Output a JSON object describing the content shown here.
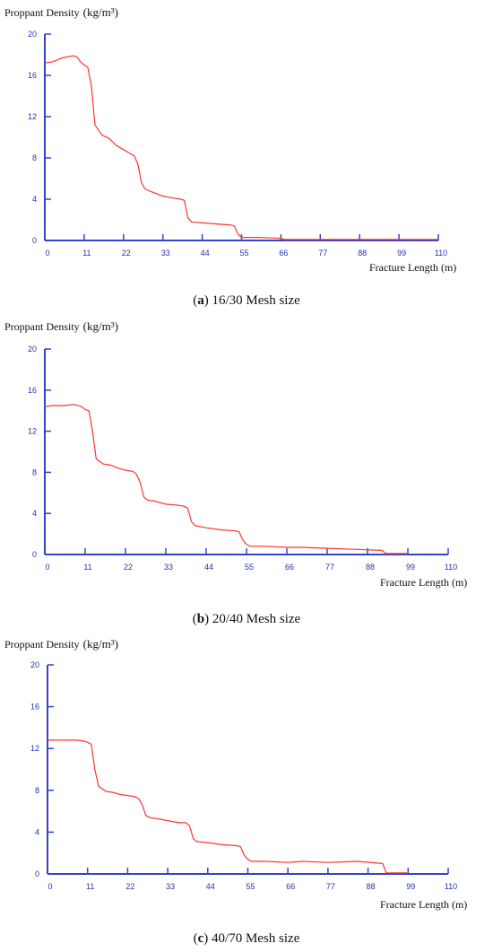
{
  "chart_data": [
    {
      "type": "line",
      "panel_label": "a",
      "caption": "16/30 Mesh size",
      "ylabel_text": "Proppant  Density",
      "ylabel_unit": "(kg/m³)",
      "xlabel_text": "Fracture Length",
      "xlabel_unit": "(m)",
      "xlim": [
        0,
        110
      ],
      "ylim": [
        0,
        20
      ],
      "xticks": [
        "0",
        "11",
        "22",
        "33",
        "44",
        "55",
        "66",
        "77",
        "88",
        "99",
        "110"
      ],
      "yticks": [
        "0",
        "4",
        "8",
        "12",
        "16",
        "20"
      ],
      "line_color": "#ff3333",
      "axis_color": "#3344cc",
      "x": [
        0,
        2,
        5,
        8,
        9,
        10,
        11,
        12,
        13,
        14,
        16,
        18,
        20,
        22,
        24,
        25,
        26,
        27,
        28,
        30,
        33,
        36,
        38,
        39,
        40,
        41,
        44,
        48,
        52,
        53,
        54,
        55,
        60,
        66,
        67,
        70,
        77,
        88,
        99,
        110
      ],
      "y": [
        17.2,
        17.3,
        17.7,
        17.9,
        17.8,
        17.3,
        17.0,
        16.8,
        15,
        11.2,
        10.2,
        9.9,
        9.2,
        8.8,
        8.4,
        8.2,
        7.4,
        5.6,
        5.0,
        4.7,
        4.3,
        4.1,
        4.0,
        3.9,
        2.2,
        1.8,
        1.7,
        1.6,
        1.5,
        1.4,
        0.6,
        0.3,
        0.3,
        0.2,
        0.1,
        0.1,
        0.1,
        0.1,
        0.1,
        0.1
      ]
    },
    {
      "type": "line",
      "panel_label": "b",
      "caption": "20/40 Mesh size",
      "ylabel_text": "Proppant  Density",
      "ylabel_unit": "(kg/m³)",
      "xlabel_text": "Fracture Length",
      "xlabel_unit": "(m)",
      "xlim": [
        0,
        110
      ],
      "ylim": [
        0,
        20
      ],
      "xticks": [
        "0",
        "11",
        "22",
        "33",
        "44",
        "55",
        "66",
        "77",
        "88",
        "99",
        "110"
      ],
      "yticks": [
        "0",
        "4",
        "8",
        "12",
        "16",
        "20"
      ],
      "line_color": "#ff3333",
      "axis_color": "#3344cc",
      "x": [
        0,
        2,
        5,
        8,
        10,
        11,
        12,
        13,
        14,
        16,
        18,
        20,
        22,
        24,
        25,
        26,
        27,
        28,
        30,
        33,
        36,
        38,
        39,
        40,
        41,
        44,
        48,
        52,
        53,
        54,
        55,
        56,
        60,
        66,
        70,
        77,
        85,
        92,
        93,
        99
      ],
      "y": [
        14.4,
        14.5,
        14.5,
        14.6,
        14.4,
        14.1,
        14.0,
        12,
        9.3,
        8.8,
        8.7,
        8.4,
        8.2,
        8.1,
        7.8,
        7.0,
        5.6,
        5.3,
        5.2,
        4.9,
        4.8,
        4.7,
        4.5,
        3.2,
        2.8,
        2.6,
        2.4,
        2.3,
        2.2,
        1.4,
        1.0,
        0.8,
        0.8,
        0.7,
        0.7,
        0.6,
        0.5,
        0.4,
        0.1,
        0.1
      ]
    },
    {
      "type": "line",
      "panel_label": "c",
      "caption": "40/70 Mesh size",
      "ylabel_text": "Proppant  Density",
      "ylabel_unit": "(kg/m³)",
      "xlabel_text": "Fracture Length",
      "xlabel_unit": "(m)",
      "xlim": [
        0,
        110
      ],
      "ylim": [
        0,
        20
      ],
      "xticks": [
        "0",
        "11",
        "22",
        "33",
        "44",
        "55",
        "66",
        "77",
        "88",
        "99",
        "110"
      ],
      "yticks": [
        "0",
        "4",
        "8",
        "12",
        "16",
        "20"
      ],
      "line_color": "#ff3333",
      "axis_color": "#3344cc",
      "x": [
        0,
        2,
        5,
        8,
        10,
        11,
        12,
        13,
        14,
        16,
        18,
        20,
        22,
        24,
        25,
        26,
        27,
        28,
        30,
        33,
        36,
        38,
        39,
        40,
        41,
        44,
        48,
        52,
        53,
        54,
        55,
        56,
        60,
        66,
        70,
        77,
        85,
        92,
        93,
        99
      ],
      "y": [
        12.8,
        12.8,
        12.8,
        12.8,
        12.7,
        12.6,
        12.4,
        10,
        8.4,
        7.9,
        7.8,
        7.6,
        7.5,
        7.4,
        7.2,
        6.6,
        5.6,
        5.4,
        5.3,
        5.1,
        4.9,
        4.9,
        4.6,
        3.4,
        3.1,
        3.0,
        2.8,
        2.7,
        2.6,
        1.8,
        1.4,
        1.2,
        1.2,
        1.1,
        1.2,
        1.1,
        1.2,
        1.0,
        0.1,
        0.1
      ]
    }
  ]
}
